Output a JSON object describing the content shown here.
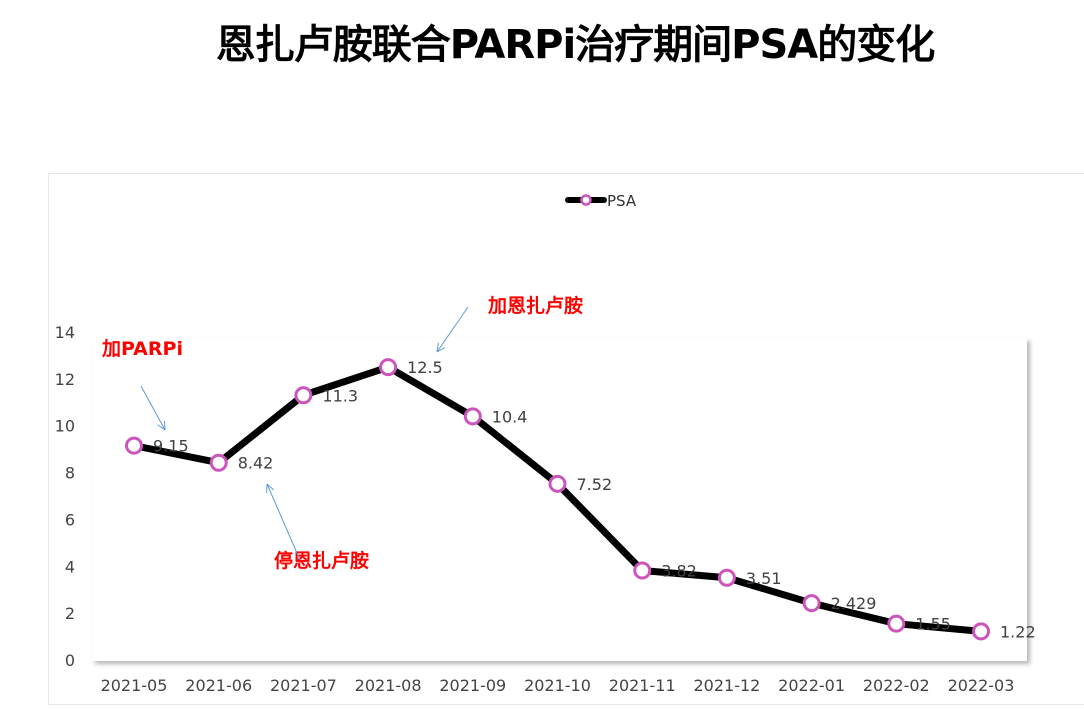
{
  "chart_data": {
    "type": "line",
    "title": "恩扎卢胺联合PARPi治疗期间PSA的变化",
    "categories": [
      "2021-05",
      "2021-06",
      "2021-07",
      "2021-08",
      "2021-09",
      "2021-10",
      "2021-11",
      "2021-12",
      "2022-01",
      "2022-02",
      "2022-03"
    ],
    "series": [
      {
        "name": "PSA",
        "values": [
          9.15,
          8.42,
          11.3,
          12.5,
          10.4,
          7.52,
          3.82,
          3.51,
          2.429,
          1.55,
          1.22
        ],
        "labels": [
          "9.15",
          "8.42",
          "11.3",
          "12.5",
          "10.4",
          "7.52",
          "3.82",
          "3.51",
          "2.429",
          "1.55",
          "1.22"
        ],
        "line_color": "#000000",
        "marker_color": "#cc55bb"
      }
    ],
    "yticks": [
      0,
      2,
      4,
      6,
      8,
      10,
      12,
      14
    ],
    "ylim": [
      0,
      14
    ],
    "legend": "top-center",
    "annotations": [
      {
        "text": "加PARPi",
        "at": "2021-05"
      },
      {
        "text": "停恩扎卢胺",
        "at": "2021-06"
      },
      {
        "text": "加恩扎卢胺",
        "at": "2021-08"
      }
    ]
  }
}
